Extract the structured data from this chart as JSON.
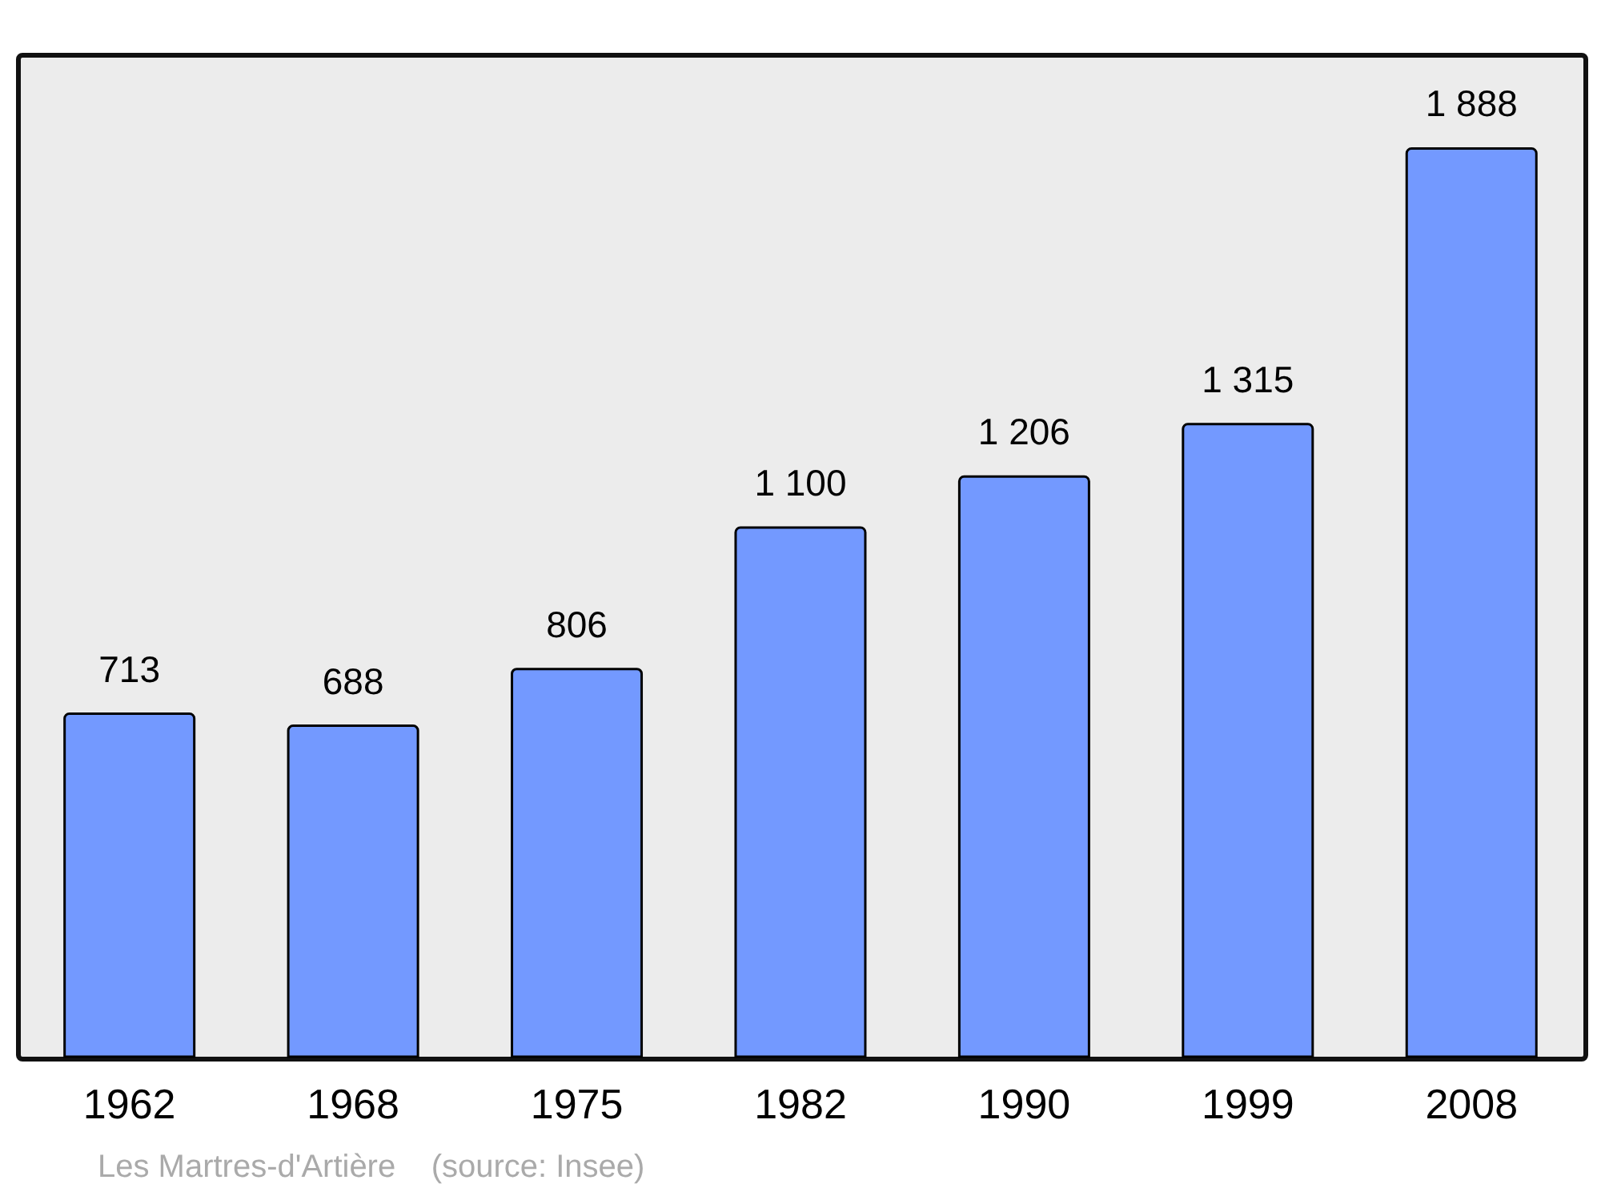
{
  "chart_data": {
    "type": "bar",
    "categories": [
      "1962",
      "1968",
      "1975",
      "1982",
      "1990",
      "1999",
      "2008"
    ],
    "values": [
      713,
      688,
      806,
      1100,
      1206,
      1315,
      1888
    ],
    "value_labels": [
      "713",
      "688",
      "806",
      "1 100",
      "1 206",
      "1 315",
      "1 888"
    ],
    "color": "#7399ff",
    "annotations": [
      "Les Martres-d'Artière    (source: Insee)"
    ]
  }
}
